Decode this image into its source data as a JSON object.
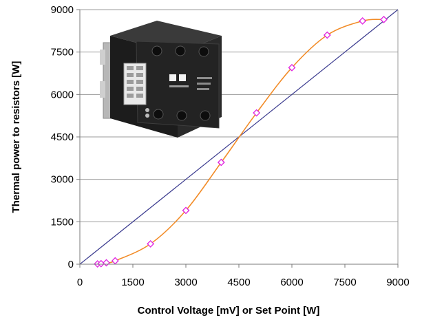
{
  "chart_data": {
    "type": "scatter",
    "title": "",
    "xlabel": "Control Voltage [mV] or Set Point [W]",
    "ylabel": "Thermal power to resistors [W]",
    "xlim": [
      0,
      9000
    ],
    "ylim": [
      0,
      9000
    ],
    "x_ticks": [
      "0",
      "1500",
      "3000",
      "4500",
      "6000",
      "7500",
      "9000"
    ],
    "y_ticks": [
      "0",
      "1500",
      "3000",
      "4500",
      "6000",
      "7500",
      "9000"
    ],
    "grid": "horizontal",
    "legend": "none",
    "series": [
      {
        "style": "smooth line with diamond markers",
        "color": "#f28c28",
        "marker_color": "#e020e0",
        "x": [
          500,
          600,
          750,
          1000,
          2000,
          3000,
          4000,
          5000,
          6000,
          7000,
          8000,
          8600
        ],
        "y": [
          10,
          20,
          50,
          120,
          720,
          1900,
          3600,
          5350,
          6950,
          8100,
          8600,
          8650
        ]
      },
      {
        "style": "reference line y = x",
        "color": "#3b3b8f",
        "x": [
          0,
          9000
        ],
        "y": [
          0,
          9000
        ]
      }
    ],
    "inset_image": "photo of a black three-phase power controller module"
  }
}
